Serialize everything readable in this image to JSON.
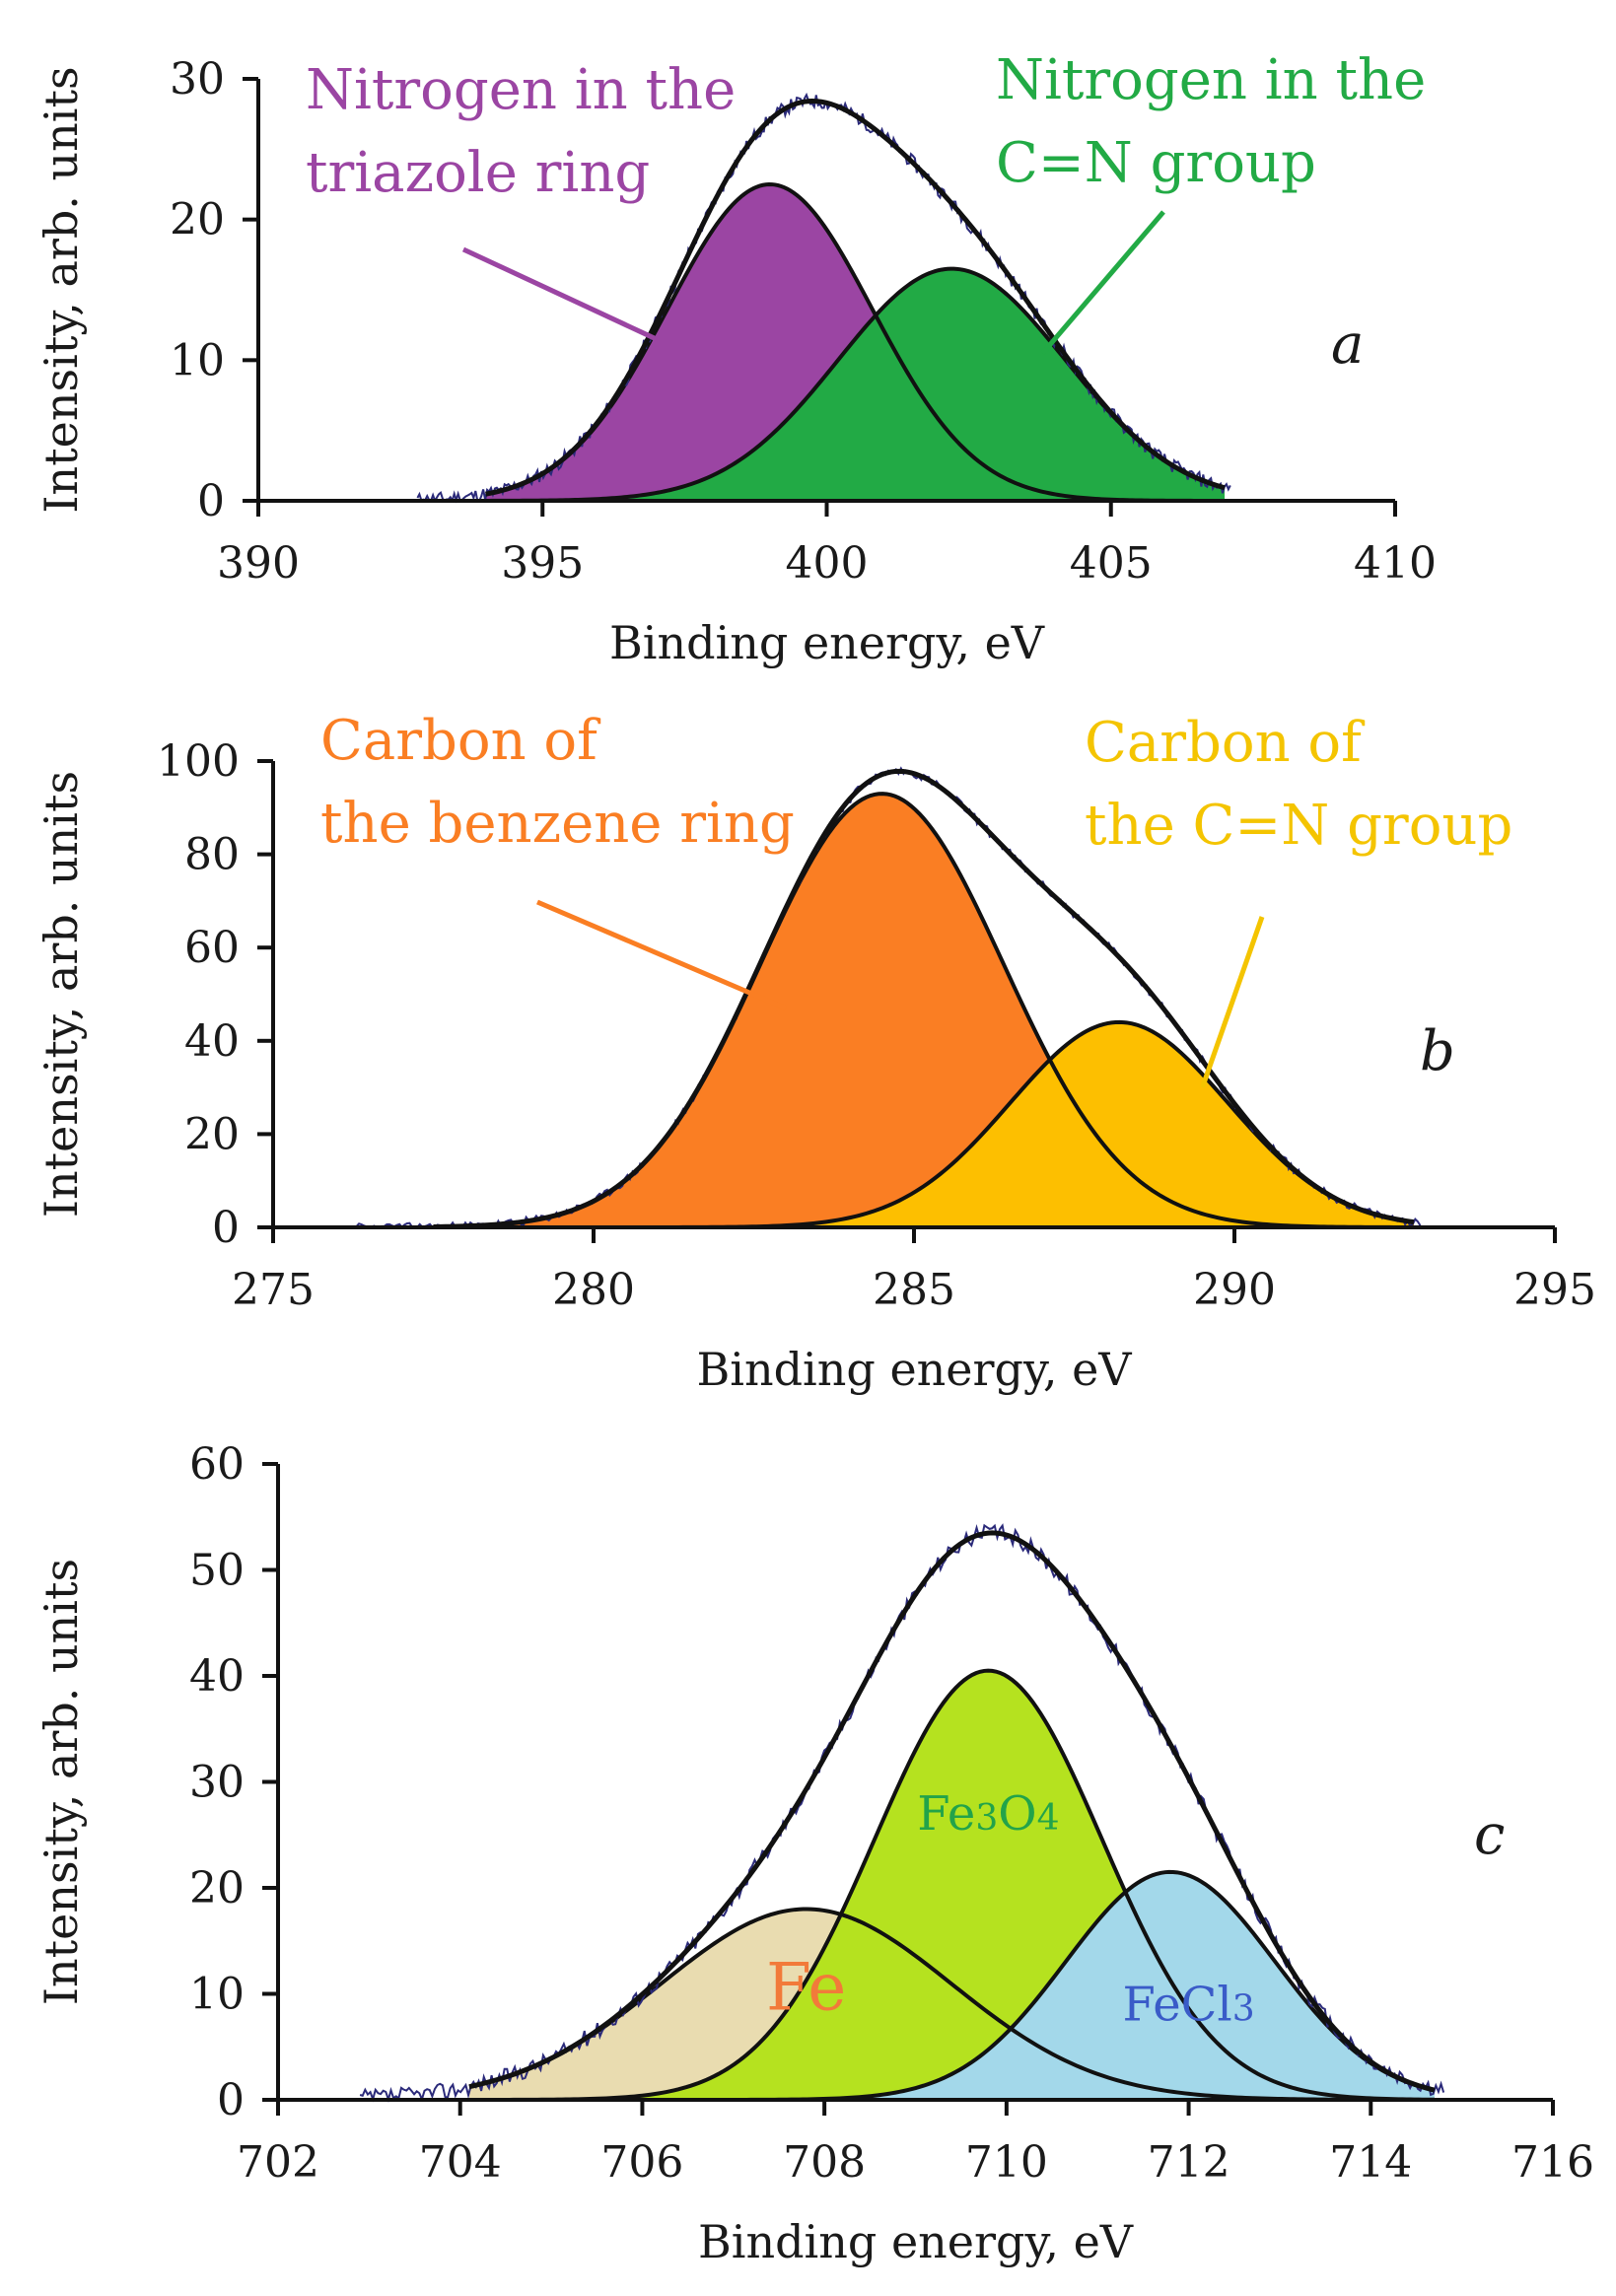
{
  "chart_data": [
    {
      "panel": "a",
      "type": "area",
      "xlabel": "Binding energy, eV",
      "ylabel": "Intensity, arb. units",
      "xlim": [
        390,
        410
      ],
      "ylim": [
        0,
        30
      ],
      "xticks": [
        390,
        395,
        400,
        405,
        410
      ],
      "yticks": [
        0,
        10,
        20,
        30
      ],
      "fit_range": [
        394,
        407
      ],
      "total_line_style": "thin",
      "noise_seed": 11,
      "noise_amp": 0.5,
      "series": [
        {
          "name": "Nitrogen in the triazole ring",
          "center": 399.0,
          "amplitude": 22.5,
          "sigma": 1.8,
          "color": "#9b45a3"
        },
        {
          "name": "Nitrogen in the C=N group",
          "center": 402.2,
          "amplitude": 16.5,
          "sigma": 2.0,
          "color": "#22aa45"
        }
      ],
      "annotations": [
        {
          "lines": [
            "Nitrogen in the",
            "triazole ring"
          ],
          "color": "#9b45a3",
          "arrow_to": [
            397.0,
            11.5
          ]
        },
        {
          "lines": [
            "Nitrogen in the",
            "C=N group"
          ],
          "color": "#22aa45",
          "arrow_to": [
            403.8,
            10.5
          ]
        }
      ],
      "panel_label": "a"
    },
    {
      "panel": "b",
      "type": "area",
      "xlabel": "Binding energy, eV",
      "ylabel": "Intensity, arb. units",
      "xlim": [
        275,
        295
      ],
      "ylim": [
        0,
        100
      ],
      "xticks": [
        275,
        280,
        285,
        290,
        295
      ],
      "yticks": [
        0,
        20,
        40,
        60,
        80,
        100
      ],
      "fit_range": [
        277.5,
        292.8
      ],
      "total_line_style": "thin",
      "noise_seed": 23,
      "noise_amp": 0.9,
      "series": [
        {
          "name": "Carbon of the benzene ring",
          "center": 284.5,
          "amplitude": 93.0,
          "sigma": 1.9,
          "color": "#fa7e23"
        },
        {
          "name": "Carbon of the C=N group",
          "center": 288.2,
          "amplitude": 44.0,
          "sigma": 1.7,
          "color": "#fdbf00"
        }
      ],
      "annotations": [
        {
          "lines": [
            "Carbon of",
            "the benzene ring"
          ],
          "color": "#fa7e23",
          "arrow_to": [
            283.0,
            47.0
          ]
        },
        {
          "lines": [
            "Carbon of",
            "the C=N group"
          ],
          "color": "#f4c400",
          "arrow_to": [
            289.5,
            30.0
          ]
        }
      ],
      "panel_label": "b"
    },
    {
      "panel": "c",
      "type": "area",
      "xlabel": "Binding energy, eV",
      "ylabel": "Intensity, arb. units",
      "xlim": [
        702,
        716
      ],
      "ylim": [
        0,
        60
      ],
      "xticks": [
        702,
        704,
        706,
        708,
        710,
        712,
        714,
        716
      ],
      "yticks": [
        0,
        10,
        20,
        30,
        40,
        50,
        60
      ],
      "fit_range": [
        704.1,
        714.7
      ],
      "total_line_style": "thin",
      "noise_seed": 37,
      "noise_amp": 0.8,
      "series": [
        {
          "name": "Fe",
          "center": 707.8,
          "amplitude": 18.0,
          "sigma": 1.6,
          "color": "#e9dcb0"
        },
        {
          "name": "Fe3O4",
          "center": 709.8,
          "amplitude": 40.5,
          "sigma": 1.25,
          "color": "#b5e21f"
        },
        {
          "name": "FeCl3",
          "center": 711.8,
          "amplitude": 21.5,
          "sigma": 1.15,
          "color": "#a3d8ea"
        }
      ],
      "peak_labels": [
        {
          "text": "Fe",
          "color": "#f27a3a",
          "at": [
            707.8,
            8.5
          ],
          "size": "large"
        },
        {
          "text": "Fe3O4",
          "color": "#22a34a",
          "at": [
            709.8,
            25.5
          ],
          "size": "medium"
        },
        {
          "text": "FeCl3",
          "color": "#3a5bc8",
          "at": [
            712.0,
            7.5
          ],
          "size": "medium"
        }
      ],
      "panel_label": "c"
    }
  ]
}
